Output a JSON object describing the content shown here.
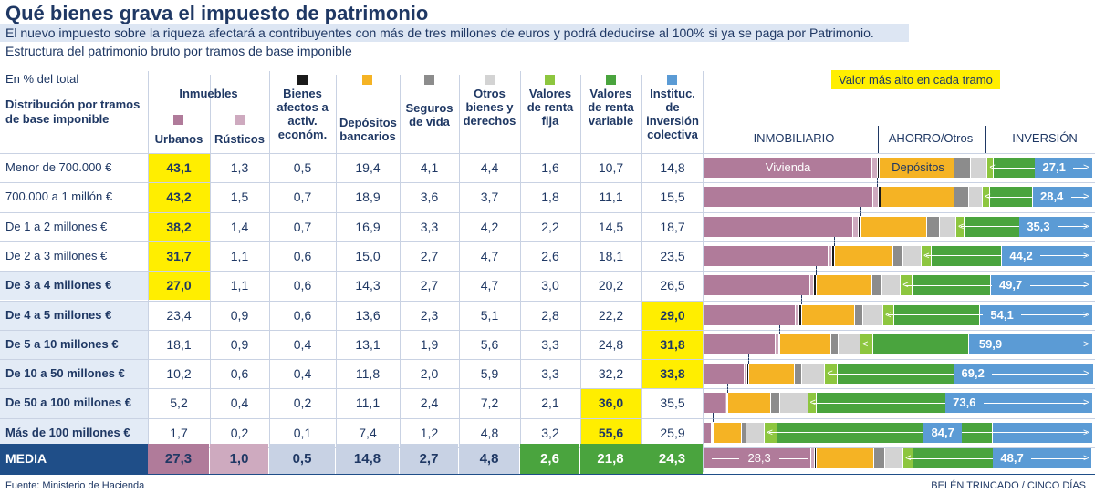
{
  "title": "Qué bienes grava el impuesto de patrimonio",
  "subtitle": "El nuevo impuesto sobre la riqueza afectará a contribuyentes con más de tres millones de euros y podrá deducirse al 100% si ya se paga por Patrimonio.",
  "subtitle2": "Estructura del patrimonio bruto por tramos de base imponible",
  "unit_note": "En % del total",
  "distribution_label": "Distribución por tramos de base imponible",
  "group_inmuebles": "Inmuebles",
  "legend_note": "Valor más alto en cada tramo",
  "section_labels": {
    "inmobiliario": "INMOBILIARIO",
    "ahorro": "AHORRO/Otros",
    "inversion": "INVERSIÓN"
  },
  "bar_inline_labels": {
    "vivienda": "Vivienda",
    "depositos": "Depósitos"
  },
  "footer": {
    "source": "Fuente: Ministerio de Hacienda",
    "credit": "BELÉN TRINCADO / CINCO DÍAS"
  },
  "media_label": "MEDIA",
  "colors": {
    "urbanos": "#b07b9a",
    "rusticos": "#ceaabf",
    "bienes": "#1a1a1a",
    "depositos": "#f5b324",
    "seguros": "#8c8c8c",
    "otros": "#d3d3d3",
    "renta_fija": "#8dc63f",
    "renta_variable": "#4aa43e",
    "colectiva": "#5b9bd5",
    "highlight": "#ffee00",
    "navy": "#1f4e88"
  },
  "chart_data": {
    "type": "table",
    "columns": [
      {
        "key": "urbanos",
        "label": "Urbanos"
      },
      {
        "key": "rusticos",
        "label": "Rústicos"
      },
      {
        "key": "bienes",
        "label": "Bienes afectos a activ. económ."
      },
      {
        "key": "depositos",
        "label": "Depósitos bancarios"
      },
      {
        "key": "seguros",
        "label": "Seguros de vida"
      },
      {
        "key": "otros",
        "label": "Otros bienes y derechos"
      },
      {
        "key": "renta_fija",
        "label": "Valores de renta fija"
      },
      {
        "key": "renta_variable",
        "label": "Valores de renta variable"
      },
      {
        "key": "colectiva",
        "label": "Instituc. de inversión colectiva"
      }
    ],
    "rows": [
      {
        "label": "Menor de 700.000 €",
        "values": [
          "43,1",
          "1,3",
          "0,5",
          "19,4",
          "4,1",
          "4,4",
          "1,6",
          "10,7",
          "14,8"
        ],
        "highlight": 0,
        "inversion": "27,1"
      },
      {
        "label": "700.000 a 1 millón €",
        "values": [
          "43,2",
          "1,5",
          "0,7",
          "18,9",
          "3,6",
          "3,7",
          "1,8",
          "11,1",
          "15,5"
        ],
        "highlight": 0,
        "inversion": "28,4"
      },
      {
        "label": "De 1 a 2 millones €",
        "values": [
          "38,2",
          "1,4",
          "0,7",
          "16,9",
          "3,3",
          "4,2",
          "2,2",
          "14,5",
          "18,7"
        ],
        "highlight": 0,
        "inversion": "35,3"
      },
      {
        "label": "De 2 a 3 millones €",
        "values": [
          "31,7",
          "1,1",
          "0,6",
          "15,0",
          "2,7",
          "4,7",
          "2,6",
          "18,1",
          "23,5"
        ],
        "highlight": 0,
        "inversion": "44,2"
      },
      {
        "label": "De 3 a 4 millones €",
        "values": [
          "27,0",
          "1,1",
          "0,6",
          "14,3",
          "2,7",
          "4,7",
          "3,0",
          "20,2",
          "26,5"
        ],
        "highlight": 0,
        "inversion": "49,7",
        "bold": true
      },
      {
        "label": "De 4 a 5 millones €",
        "values": [
          "23,4",
          "0,9",
          "0,6",
          "13,6",
          "2,3",
          "5,1",
          "2,8",
          "22,2",
          "29,0"
        ],
        "highlight": 8,
        "inversion": "54,1",
        "bold": true
      },
      {
        "label": "De 5 a 10 millones €",
        "values": [
          "18,1",
          "0,9",
          "0,4",
          "13,1",
          "1,9",
          "5,6",
          "3,3",
          "24,8",
          "31,8"
        ],
        "highlight": 8,
        "inversion": "59,9",
        "bold": true
      },
      {
        "label": "De 10 a 50 millones €",
        "values": [
          "10,2",
          "0,6",
          "0,4",
          "11,8",
          "2,0",
          "5,9",
          "3,3",
          "32,2",
          "33,8"
        ],
        "highlight": 8,
        "inversion": "69,2",
        "bold": true
      },
      {
        "label": "De 50 a 100 millones €",
        "values": [
          "5,2",
          "0,4",
          "0,2",
          "11,1",
          "2,4",
          "7,2",
          "2,1",
          "36,0",
          "35,5"
        ],
        "highlight": 7,
        "inversion": "73,6",
        "bold": true
      },
      {
        "label": "Más de 100 millones €",
        "values": [
          "1,7",
          "0,2",
          "0,1",
          "7,4",
          "1,2",
          "4,8",
          "3,2",
          "55,6",
          "25,9"
        ],
        "highlight": 7,
        "inversion": "84,7",
        "bold": true
      }
    ],
    "media": {
      "values": [
        "27,3",
        "1,0",
        "0,5",
        "14,8",
        "2,7",
        "4,8",
        "2,6",
        "21,8",
        "24,3"
      ],
      "inmobiliario": "28,3",
      "inversion": "48,7"
    }
  }
}
